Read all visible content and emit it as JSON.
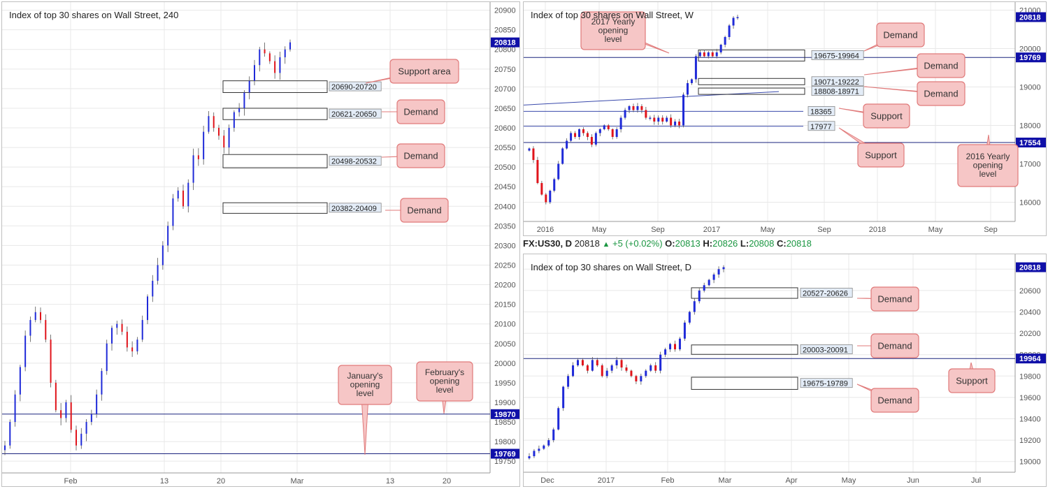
{
  "colors": {
    "up": "#1f2ad8",
    "down": "#e0141b",
    "line": "#1a237e",
    "tag": "#1010a8",
    "callout_fill": "#f6c6c6",
    "callout_stroke": "#e07a7a",
    "grid": "#e8e8e8"
  },
  "info_bar": {
    "symbol": "FX:US30, D",
    "last": "20818",
    "change": "+5 (+0.02%)",
    "o_label": "O:",
    "o": "20813",
    "h_label": "H:",
    "h": "20826",
    "l_label": "L:",
    "l": "20808",
    "c_label": "C:",
    "c": "20818"
  },
  "chart_data": [
    {
      "type": "candlestick",
      "title": "Index of top 30 shares on Wall Street, 240",
      "ylim": [
        19720,
        20910
      ],
      "y_ticks": [
        19750,
        19800,
        19850,
        19900,
        19950,
        20000,
        20050,
        20100,
        20150,
        20200,
        20250,
        20300,
        20350,
        20400,
        20450,
        20500,
        20550,
        20600,
        20650,
        20700,
        20750,
        20800,
        20850,
        20900
      ],
      "x_tick_labels": [
        "Feb",
        "13",
        "20",
        "Mar",
        "13",
        "20"
      ],
      "last_price": 20818,
      "levels": [
        {
          "name": "February's opening level",
          "value": 19870,
          "label": "19870"
        },
        {
          "name": "January's opening level",
          "value": 19769,
          "label": "19769"
        }
      ],
      "zones": [
        {
          "label": "20690-20720",
          "low": 20690,
          "high": 20720,
          "note": "Support area"
        },
        {
          "label": "20621-20650",
          "low": 20621,
          "high": 20650,
          "note": "Demand"
        },
        {
          "label": "20498-20532",
          "low": 20498,
          "high": 20532,
          "note": "Demand"
        },
        {
          "label": "20382-20409",
          "low": 20382,
          "high": 20409,
          "note": "Demand"
        }
      ],
      "annotations": [
        "Support area",
        "Demand",
        "Demand",
        "Demand",
        "January's opening level",
        "February's opening level"
      ],
      "close_path": [
        19790,
        19850,
        19920,
        19990,
        20070,
        20110,
        20130,
        20110,
        20060,
        19950,
        19880,
        19860,
        19900,
        19830,
        19790,
        19820,
        19850,
        19870,
        19920,
        19980,
        20050,
        20090,
        20100,
        20080,
        20040,
        20030,
        20060,
        20110,
        20170,
        20210,
        20250,
        20300,
        20350,
        20420,
        20440,
        20400,
        20460,
        20530,
        20520,
        20590,
        20630,
        20600,
        20580,
        20550,
        20600,
        20640,
        20650,
        20690,
        20720,
        20760,
        20800,
        20790,
        20770,
        20740,
        20780,
        20800,
        20818
      ]
    },
    {
      "type": "candlestick",
      "title": "Index of top 30 shares on Wall Street, W",
      "ylim": [
        15500,
        21100
      ],
      "y_ticks": [
        16000,
        17000,
        18000,
        19000,
        20000,
        21000
      ],
      "x_tick_labels": [
        "2016",
        "May",
        "Sep",
        "2017",
        "May",
        "Sep",
        "2018",
        "May",
        "Sep"
      ],
      "last_price": 20818,
      "levels": [
        {
          "name": "2017 Yearly opening level",
          "value": 19769,
          "label": "19769"
        },
        {
          "name": "2016 Yearly opening level",
          "value": 17554,
          "label": "17554"
        },
        {
          "name": "Support",
          "value": 18365,
          "label": "18365"
        },
        {
          "name": "Support",
          "value": 17977,
          "label": "17977"
        }
      ],
      "zones": [
        {
          "label": "19675-19964",
          "low": 19675,
          "high": 19964,
          "note": "Demand"
        },
        {
          "label": "19071-19222",
          "low": 19071,
          "high": 19222,
          "note": "Demand"
        },
        {
          "label": "18808-18971",
          "low": 18808,
          "high": 18971,
          "note": "Demand"
        }
      ],
      "annotations": [
        "2017 Yearly opening level",
        "Demand",
        "Demand",
        "Demand",
        "Support",
        "Support",
        "2016 Yearly opening level"
      ],
      "close_path": [
        17400,
        17100,
        16500,
        16200,
        16000,
        16300,
        16600,
        17000,
        17400,
        17600,
        17800,
        17700,
        17900,
        17800,
        17700,
        17500,
        17800,
        17900,
        18000,
        17900,
        17700,
        17900,
        18200,
        18400,
        18500,
        18400,
        18500,
        18400,
        18200,
        18200,
        18100,
        18200,
        18100,
        18200,
        18000,
        18100,
        18000,
        18800,
        19100,
        19200,
        19800,
        19900,
        19800,
        19900,
        19800,
        19900,
        20100,
        20300,
        20600,
        20800,
        20818
      ]
    },
    {
      "type": "candlestick",
      "title": "Index of top 30 shares on Wall Street, D",
      "ylim": [
        18900,
        20900
      ],
      "y_ticks": [
        19000,
        19200,
        19400,
        19600,
        19800,
        20000,
        20200,
        20400,
        20600,
        20800
      ],
      "x_tick_labels": [
        "Dec",
        "2017",
        "Feb",
        "Mar",
        "Apr",
        "May",
        "Jun",
        "Jul"
      ],
      "last_price": 20818,
      "levels": [
        {
          "name": "Support",
          "value": 19964,
          "label": "19964"
        }
      ],
      "zones": [
        {
          "label": "20527-20626",
          "low": 20527,
          "high": 20626,
          "note": "Demand"
        },
        {
          "label": "20003-20091",
          "low": 20003,
          "high": 20091,
          "note": "Demand"
        },
        {
          "label": "19675-19789",
          "low": 19675,
          "high": 19789,
          "note": "Demand"
        }
      ],
      "annotations": [
        "Demand",
        "Demand",
        "Support",
        "Demand"
      ],
      "close_path": [
        19050,
        19100,
        19120,
        19150,
        19200,
        19300,
        19500,
        19700,
        19800,
        19900,
        19950,
        19900,
        19850,
        19950,
        19900,
        19800,
        19850,
        19900,
        19950,
        19880,
        19850,
        19800,
        19750,
        19800,
        19850,
        19900,
        19850,
        20000,
        20050,
        20100,
        20050,
        20150,
        20300,
        20400,
        20500,
        20600,
        20650,
        20700,
        20750,
        20800,
        20818
      ]
    }
  ]
}
